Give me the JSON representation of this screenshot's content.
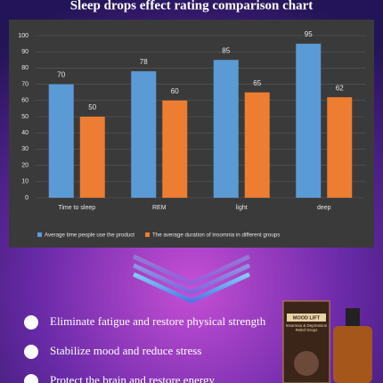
{
  "chart_data": {
    "type": "bar",
    "title": "Sleep drops effect rating comparison chart",
    "categories": [
      "Time to sleep",
      "REM",
      "light",
      "deep"
    ],
    "series": [
      {
        "name": "Average time people use the product",
        "color": "#5b9bd5",
        "values": [
          70,
          78,
          85,
          95
        ]
      },
      {
        "name": "The average duration of insomnia in different groups",
        "color": "#ed7d31",
        "values": [
          50,
          60,
          65,
          62
        ]
      }
    ],
    "ylim": [
      0,
      100
    ],
    "yticks": [
      0,
      10,
      20,
      30,
      40,
      50,
      60,
      70,
      80,
      90,
      100
    ],
    "grid": true,
    "legend": "bottom"
  },
  "benefits": [
    "Eliminate fatigue and restore physical strength",
    "Stabilize mood and reduce stress",
    "Protect the brain and restore energy"
  ],
  "product": {
    "name": "MOOD LIFT",
    "description": "Insomnia & Depression Relief Drops"
  }
}
